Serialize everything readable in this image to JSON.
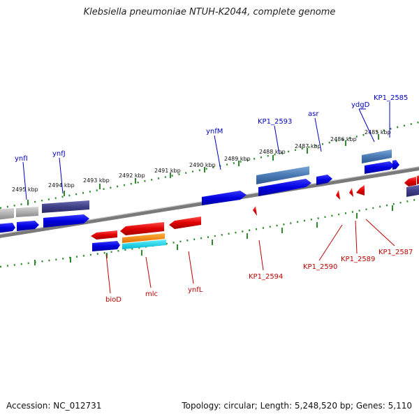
{
  "title": "Klebsiella pneumoniae NTUH-K2044, complete genome",
  "accession": "Accession: NC_012731",
  "topology": "Topology: circular; Length: 5,248,520 bp; Genes: 5,110",
  "colors": {
    "forward_gene": "#0000ee",
    "reverse_gene": "#ee0000",
    "backbone": "#7a7a7a",
    "tick": "#2f8a2f",
    "top_label": "#0000c0",
    "bottom_label": "#c00000"
  },
  "tick_labels": [
    "2495 kbp",
    "2494 kbp",
    "2493 kbp",
    "2492 kbp",
    "2491 kbp",
    "2490 kbp",
    "2489 kbp",
    "2488 kbp",
    "2487 kbp",
    "2486 kbp",
    "2485 kbp"
  ],
  "top_genes": [
    "ynfI",
    "ynfJ",
    "ynfM",
    "KP1_2593",
    "asr",
    "ydgD",
    "KP1_2585"
  ],
  "bottom_genes": [
    "bioD",
    "mlc",
    "ynfL",
    "KP1_2594",
    "KP1_2590",
    "KP1_2589",
    "KP1_2587"
  ]
}
